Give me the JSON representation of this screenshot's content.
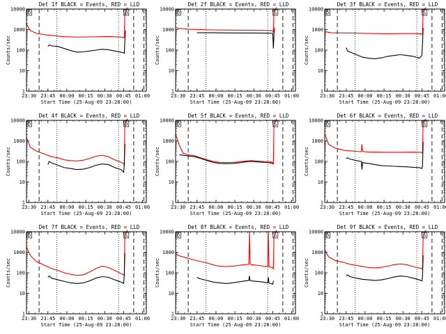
{
  "chart_data": [
    {
      "type": "line",
      "title": "Det 1f BLACK = Events, RED = LLD",
      "xlabel": "Start Time (25-Aug-09 23:28:00)",
      "ylabel": "Counts/sec",
      "yscale": "log",
      "ylim": [
        1,
        10000
      ],
      "x_ticks": [
        "23:30",
        "23:45",
        "00:00",
        "00:15",
        "00:30",
        "00:45",
        "01:00"
      ],
      "y_ticks": [
        "1",
        "10",
        "100",
        "1000",
        "10000"
      ],
      "markers": [
        "D",
        "D"
      ],
      "series": [
        {
          "color": "#ff0000",
          "x": [
            0,
            3,
            8,
            15,
            20,
            30,
            40,
            50,
            60,
            66,
            75,
            77.5,
            78,
            80
          ],
          "y": [
            1900,
            900,
            650,
            560,
            520,
            450,
            430,
            440,
            450,
            460,
            430,
            400,
            6000,
            12000
          ]
        },
        {
          "color": "#000000",
          "x": [
            17,
            18,
            20,
            25,
            30,
            35,
            40,
            45,
            50,
            55,
            60,
            65,
            70,
            75,
            77.5,
            78,
            78.5
          ],
          "y": [
            150,
            180,
            160,
            150,
            120,
            95,
            80,
            82,
            90,
            100,
            110,
            105,
            90,
            80,
            70,
            300,
            900
          ]
        }
      ]
    },
    {
      "type": "line",
      "title": "Det 2f BLACK = Events, RED = LLD",
      "xlabel": "Start Time (25-Aug-09 23:28:00)",
      "ylabel": "Counts/sec",
      "yscale": "log",
      "ylim": [
        1,
        10000
      ],
      "x_ticks": [
        "23:30",
        "23:45",
        "00:00",
        "00:15",
        "00:30",
        "00:45",
        "01:00"
      ],
      "y_ticks": [
        "1",
        "10",
        "100",
        "1000",
        "10000"
      ],
      "markers": [
        "D",
        "S"
      ],
      "series": [
        {
          "color": "#ff0000",
          "x": [
            0,
            2,
            10,
            20,
            30,
            40,
            50,
            60,
            70,
            75,
            77,
            77.5,
            78,
            80
          ],
          "y": [
            1300,
            1150,
            1050,
            1000,
            960,
            950,
            940,
            930,
            920,
            900,
            880,
            700,
            8000,
            12000
          ]
        },
        {
          "color": "#000000",
          "x": [
            17,
            20,
            30,
            40,
            50,
            60,
            70,
            75,
            77,
            77.5,
            78,
            78.5
          ],
          "y": [
            700,
            700,
            700,
            690,
            680,
            680,
            670,
            660,
            650,
            120,
            600,
            1200
          ]
        }
      ]
    },
    {
      "type": "line",
      "title": "Det 3f BLACK = Events, RED = LLD",
      "xlabel": "Start Time (25-Aug-09 23:28:00)",
      "ylabel": "Counts/sec",
      "yscale": "log",
      "ylim": [
        1,
        10000
      ],
      "x_ticks": [
        "23:30",
        "23:45",
        "00:00",
        "00:15",
        "00:30",
        "00:45",
        "01:00"
      ],
      "y_ticks": [
        "1",
        "10",
        "100",
        "1000",
        "10000"
      ],
      "markers": [
        "D",
        "S"
      ],
      "series": [
        {
          "color": "#ff0000",
          "x": [
            0,
            5,
            10,
            20,
            30,
            40,
            50,
            60,
            70,
            75,
            77,
            77.5,
            78,
            80
          ],
          "y": [
            800,
            700,
            690,
            680,
            660,
            640,
            630,
            640,
            640,
            630,
            610,
            580,
            8000,
            12000
          ]
        },
        {
          "color": "#000000",
          "x": [
            17,
            18,
            20,
            25,
            30,
            35,
            40,
            45,
            50,
            55,
            60,
            65,
            70,
            75,
            77,
            77.5,
            78
          ],
          "y": [
            130,
            90,
            80,
            60,
            45,
            40,
            38,
            42,
            50,
            55,
            60,
            55,
            50,
            40,
            55,
            200,
            1200
          ]
        }
      ]
    },
    {
      "type": "line",
      "title": "Det 4f BLACK = Events, RED = LLD",
      "xlabel": "Start Time (25-Aug-09 23:28:00)",
      "ylabel": "Counts/sec",
      "yscale": "log",
      "ylim": [
        1,
        10000
      ],
      "x_ticks": [
        "23:30",
        "23:45",
        "00:00",
        "00:15",
        "00:30",
        "00:45",
        "01:00"
      ],
      "y_ticks": [
        "1",
        "10",
        "100",
        "1000",
        "10000"
      ],
      "markers": [
        "D",
        "D"
      ],
      "series": [
        {
          "color": "#ff0000",
          "x": [
            0,
            3,
            8,
            15,
            20,
            25,
            30,
            35,
            40,
            45,
            50,
            55,
            60,
            65,
            70,
            75,
            77,
            77.5,
            78,
            80
          ],
          "y": [
            1500,
            500,
            320,
            220,
            170,
            150,
            120,
            110,
            105,
            115,
            140,
            180,
            200,
            170,
            120,
            90,
            80,
            60,
            7000,
            12000
          ]
        },
        {
          "color": "#000000",
          "x": [
            17,
            18,
            20,
            25,
            30,
            35,
            40,
            45,
            50,
            55,
            60,
            65,
            70,
            75,
            77,
            77.5,
            78
          ],
          "y": [
            70,
            100,
            85,
            65,
            50,
            45,
            40,
            42,
            50,
            65,
            75,
            70,
            50,
            40,
            30,
            60,
            700
          ]
        }
      ]
    },
    {
      "type": "line",
      "title": "Det 5f BLACK = Events, RED = LLD",
      "xlabel": "Start Time (25-Aug-09 23:28:00)",
      "ylabel": "Counts/sec",
      "yscale": "log",
      "ylim": [
        1,
        10000
      ],
      "x_ticks": [
        "23:30",
        "23:45",
        "00:00",
        "00:15",
        "00:30",
        "00:45",
        "01:00"
      ],
      "y_ticks": [
        "1",
        "10",
        "100",
        "1000",
        "10000"
      ],
      "markers": [
        "D",
        "S"
      ],
      "series": [
        {
          "color": "#ff0000",
          "x": [
            0,
            1,
            3,
            6,
            10,
            15,
            20,
            25,
            30,
            35,
            40,
            45,
            50,
            55,
            60,
            65,
            70,
            75,
            77,
            77.5,
            78,
            80
          ],
          "y": [
            2000,
            1400,
            600,
            250,
            210,
            190,
            150,
            120,
            100,
            90,
            88,
            90,
            95,
            105,
            110,
            105,
            100,
            95,
            90,
            80,
            7000,
            12000
          ]
        },
        {
          "color": "#000000",
          "x": [
            3,
            6,
            10,
            15,
            20,
            25,
            30,
            35,
            40,
            45,
            50,
            55,
            60,
            65,
            70,
            75,
            77,
            77.5
          ],
          "y": [
            210,
            200,
            185,
            170,
            140,
            110,
            90,
            80,
            78,
            80,
            85,
            95,
            100,
            95,
            90,
            85,
            80,
            75
          ]
        }
      ]
    },
    {
      "type": "line",
      "title": "Det 6f BLACK = Events, RED = LLD",
      "xlabel": "Start Time (25-Aug-09 23:28:00)",
      "ylabel": "Counts/sec",
      "yscale": "log",
      "ylim": [
        1,
        10000
      ],
      "x_ticks": [
        "23:30",
        "23:45",
        "00:00",
        "00:15",
        "00:30",
        "00:45",
        "01:00"
      ],
      "y_ticks": [
        "1",
        "10",
        "100",
        "1000",
        "10000"
      ],
      "markers": [
        "D",
        "S"
      ],
      "series": [
        {
          "color": "#ff0000",
          "x": [
            0,
            3,
            8,
            15,
            20,
            25,
            29,
            29.5,
            30,
            31,
            35,
            40,
            50,
            60,
            70,
            75,
            77,
            77.5,
            78,
            80
          ],
          "y": [
            2200,
            700,
            450,
            350,
            330,
            310,
            300,
            700,
            320,
            300,
            290,
            285,
            280,
            280,
            285,
            280,
            270,
            260,
            8000,
            12000
          ]
        },
        {
          "color": "#000000",
          "x": [
            17,
            18,
            20,
            25,
            29,
            29.5,
            30,
            31,
            35,
            40,
            45,
            50,
            55,
            60,
            65,
            70,
            75,
            77,
            77.5,
            78
          ],
          "y": [
            140,
            150,
            130,
            110,
            100,
            40,
            90,
            85,
            80,
            70,
            62,
            60,
            58,
            56,
            55,
            52,
            50,
            45,
            60,
            900
          ]
        }
      ]
    },
    {
      "type": "line",
      "title": "Det 7f BLACK = Events, RED = LLD",
      "xlabel": "Start Time (25-Aug-09 23:28:00)",
      "ylabel": "Counts/sec",
      "yscale": "log",
      "ylim": [
        1,
        10000
      ],
      "x_ticks": [
        "23:30",
        "23:45",
        "00:00",
        "00:15",
        "00:30",
        "00:45",
        "01:00"
      ],
      "y_ticks": [
        "1",
        "10",
        "100",
        "1000",
        "10000"
      ],
      "markers": [
        "D",
        "S"
      ],
      "series": [
        {
          "color": "#ff0000",
          "x": [
            0,
            3,
            8,
            15,
            20,
            25,
            30,
            35,
            40,
            45,
            50,
            55,
            60,
            65,
            70,
            75,
            77,
            77.5,
            78,
            80
          ],
          "y": [
            1800,
            700,
            350,
            220,
            160,
            130,
            100,
            85,
            75,
            80,
            110,
            160,
            210,
            180,
            130,
            90,
            80,
            70,
            7000,
            12000
          ]
        },
        {
          "color": "#000000",
          "x": [
            17,
            18,
            20,
            25,
            30,
            35,
            40,
            45,
            50,
            55,
            60,
            65,
            70,
            75,
            77,
            77.5,
            78
          ],
          "y": [
            60,
            70,
            55,
            45,
            38,
            32,
            30,
            32,
            40,
            55,
            65,
            60,
            45,
            35,
            30,
            70,
            900
          ]
        }
      ]
    },
    {
      "type": "line",
      "title": "Det 8f BLACK = Events, RED = LLD",
      "xlabel": "Start Time (25-Aug-09 23:28:00)",
      "ylabel": "Counts/sec",
      "yscale": "log",
      "ylim": [
        1,
        10000
      ],
      "x_ticks": [
        "23:30",
        "23:45",
        "00:00",
        "00:15",
        "00:30",
        "00:45",
        "01:00"
      ],
      "y_ticks": [
        "1",
        "10",
        "100",
        "1000",
        "10000"
      ],
      "markers": [
        "D",
        "S"
      ],
      "series": [
        {
          "color": "#ff0000",
          "x": [
            0,
            2,
            8,
            15,
            20,
            25,
            30,
            35,
            40,
            45,
            50,
            55,
            58,
            58.5,
            59,
            60,
            65,
            70,
            73,
            73.5,
            74,
            75,
            77,
            77.5,
            78,
            80
          ],
          "y": [
            900,
            700,
            550,
            420,
            350,
            300,
            240,
            210,
            200,
            210,
            230,
            250,
            260,
            10000,
            270,
            250,
            230,
            210,
            200,
            10000,
            200,
            190,
            180,
            150,
            6000,
            12000
          ]
        },
        {
          "color": "#000000",
          "x": [
            17,
            18,
            20,
            25,
            30,
            35,
            40,
            45,
            50,
            55,
            58,
            58.5,
            59,
            60,
            65,
            70,
            73,
            73.5,
            74,
            75,
            77,
            77.5
          ],
          "y": [
            60,
            55,
            50,
            42,
            35,
            32,
            30,
            32,
            36,
            40,
            42,
            70,
            42,
            40,
            38,
            35,
            32,
            60,
            32,
            30,
            28,
            40
          ]
        }
      ]
    },
    {
      "type": "line",
      "title": "Det 9f BLACK = Events, RED = LLD",
      "xlabel": "Start Time (25-Aug-09 23:28:00)",
      "ylabel": "Counts/sec",
      "yscale": "log",
      "ylim": [
        1,
        10000
      ],
      "x_ticks": [
        "23:30",
        "23:45",
        "00:00",
        "00:15",
        "00:30",
        "00:45",
        "01:00"
      ],
      "y_ticks": [
        "1",
        "10",
        "100",
        "1000",
        "10000"
      ],
      "markers": [
        "D",
        "S"
      ],
      "series": [
        {
          "color": "#ff0000",
          "x": [
            0,
            3,
            8,
            15,
            20,
            25,
            30,
            35,
            40,
            45,
            50,
            55,
            60,
            65,
            70,
            75,
            77,
            77.5,
            78,
            80
          ],
          "y": [
            1300,
            600,
            400,
            320,
            260,
            230,
            200,
            180,
            175,
            185,
            210,
            250,
            270,
            250,
            200,
            170,
            160,
            150,
            6000,
            12000
          ]
        },
        {
          "color": "#000000",
          "x": [
            17,
            18,
            20,
            25,
            30,
            35,
            40,
            45,
            50,
            55,
            60,
            65,
            70,
            75,
            77,
            77.5,
            78
          ],
          "y": [
            70,
            80,
            65,
            55,
            48,
            45,
            42,
            45,
            52,
            62,
            70,
            65,
            55,
            45,
            40,
            60,
            700
          ]
        }
      ]
    }
  ]
}
